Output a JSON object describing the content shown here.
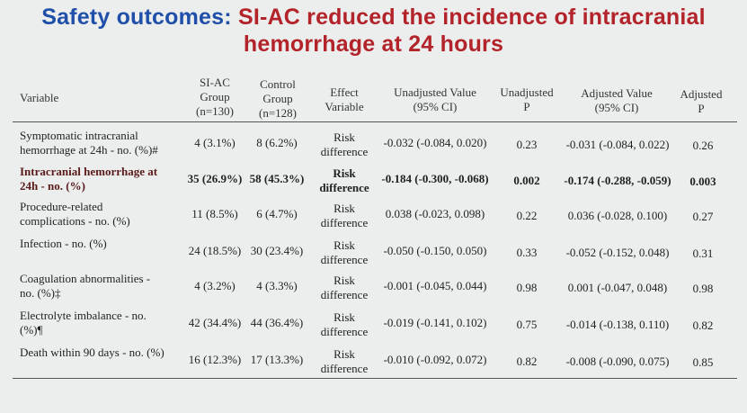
{
  "title": {
    "prefix": "Safety outcomes:",
    "highlight_line1": "SI-AC reduced the incidence of intracranial",
    "highlight_line2": "hemorrhage at 24 hours"
  },
  "headers": {
    "variable": "Variable",
    "siac": [
      "SI-AC",
      "Group",
      "(n=130)"
    ],
    "control": [
      "Control",
      "Group",
      "(n=128)"
    ],
    "effect": [
      "Effect",
      "Variable"
    ],
    "unadj_value": [
      "Unadjusted Value",
      "(95% CI)"
    ],
    "unadj_p": [
      "Unadjusted",
      "P"
    ],
    "adj_value": [
      "Adjusted Value",
      "(95% CI)"
    ],
    "adj_p": [
      "Adjusted",
      "P"
    ]
  },
  "rows": [
    {
      "variable": [
        "Symptomatic intracranial",
        "hemorrhage at 24h - no. (%)#"
      ],
      "siac": "4 (3.1%)",
      "control": "8 (6.2%)",
      "effect": [
        "Risk",
        "difference"
      ],
      "unadj_value": "-0.032 (-0.084, 0.020)",
      "unadj_p": "0.23",
      "adj_value": "-0.031 (-0.084, 0.022)",
      "adj_p": "0.26",
      "bold": false
    },
    {
      "variable": [
        "Intracranial hemorrhage at",
        "24h - no. (%)"
      ],
      "siac": "35 (26.9%)",
      "control": "58 (45.3%)",
      "effect": [
        "Risk",
        "difference"
      ],
      "unadj_value": "-0.184 (-0.300, -0.068)",
      "unadj_p": "0.002",
      "adj_value": "-0.174 (-0.288, -0.059)",
      "adj_p": "0.003",
      "bold": true
    },
    {
      "variable": [
        "Procedure-related",
        "complications - no. (%)"
      ],
      "siac": "11 (8.5%)",
      "control": "6 (4.7%)",
      "effect": [
        "Risk",
        "difference"
      ],
      "unadj_value": "0.038 (-0.023, 0.098)",
      "unadj_p": "0.22",
      "adj_value": "0.036 (-0.028, 0.100)",
      "adj_p": "0.27",
      "bold": false
    },
    {
      "variable": [
        "Infection - no. (%)",
        ""
      ],
      "siac": "24 (18.5%)",
      "control": "30 (23.4%)",
      "effect": [
        "Risk",
        "difference"
      ],
      "unadj_value": "-0.050 (-0.150, 0.050)",
      "unadj_p": "0.33",
      "adj_value": "-0.052 (-0.152, 0.048)",
      "adj_p": "0.31",
      "bold": false
    },
    {
      "variable": [
        "Coagulation abnormalities -",
        "no. (%)‡"
      ],
      "siac": "4 (3.2%)",
      "control": "4 (3.3%)",
      "effect": [
        "Risk",
        "difference"
      ],
      "unadj_value": "-0.001 (-0.045, 0.044)",
      "unadj_p": "0.98",
      "adj_value": "0.001 (-0.047, 0.048)",
      "adj_p": "0.98",
      "bold": false
    },
    {
      "variable": [
        "Electrolyte imbalance - no.",
        "(%)¶"
      ],
      "siac": "42 (34.4%)",
      "control": "44 (36.4%)",
      "effect": [
        "Risk",
        "difference"
      ],
      "unadj_value": "-0.019 (-0.141, 0.102)",
      "unadj_p": "0.75",
      "adj_value": "-0.014 (-0.138, 0.110)",
      "adj_p": "0.82",
      "bold": false
    },
    {
      "variable": [
        "Death within 90 days - no. (%)",
        ""
      ],
      "siac": "16 (12.3%)",
      "control": "17 (13.3%)",
      "effect": [
        "Risk",
        "difference"
      ],
      "unadj_value": "-0.010 (-0.092, 0.072)",
      "unadj_p": "0.82",
      "adj_value": "-0.008 (-0.090, 0.075)",
      "adj_p": "0.85",
      "bold": false
    }
  ]
}
